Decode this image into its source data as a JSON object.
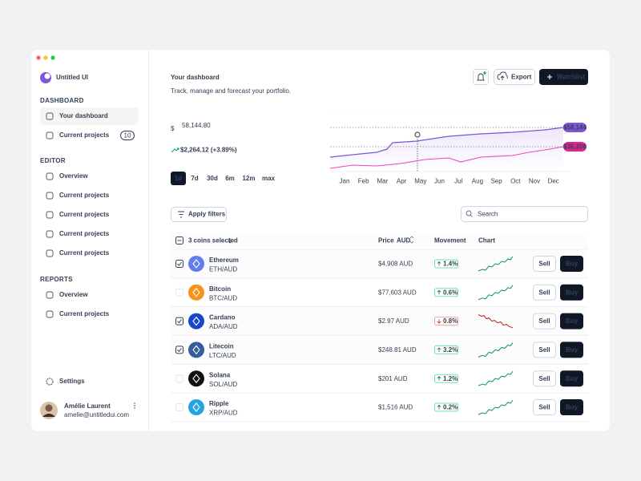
{
  "brand": "Untitled UI",
  "nav": [
    {
      "heading": "DASHBOARD",
      "items": [
        {
          "label": "Your dashboard",
          "active": true
        },
        {
          "label": "Current projects",
          "badge": "10"
        }
      ]
    },
    {
      "heading": "EDITOR",
      "items": [
        {
          "label": "Overview"
        },
        {
          "label": "Current projects"
        },
        {
          "label": "Current projects"
        },
        {
          "label": "Current projects"
        },
        {
          "label": "Current projects"
        }
      ]
    },
    {
      "heading": "REPORTS",
      "items": [
        {
          "label": "Overview"
        },
        {
          "label": "Current projects"
        }
      ]
    }
  ],
  "settings": "Settings",
  "user": {
    "name": "Amélie Laurent",
    "email": "amelie@untitledui.com"
  },
  "header": {
    "title": "Your dashboard",
    "subtitle": "Track, manage and forecast your portfolio.",
    "export": "Export",
    "watchlist": "Watchlist"
  },
  "balance": {
    "currency": "$",
    "amount": "58,144.80",
    "change": "$2,264.12 (+3.89%)"
  },
  "ranges": {
    "options": [
      "1d",
      "7d",
      "30d",
      "6m",
      "12m",
      "max"
    ],
    "selected": 0
  },
  "chart": {
    "months": [
      "Jan",
      "Feb",
      "Mar",
      "Apr",
      "May",
      "Jun",
      "Jul",
      "Aug",
      "Sep",
      "Oct",
      "Nov",
      "Dec"
    ],
    "labels": [
      "$58,144",
      "$36,206"
    ]
  },
  "filters": "Apply filters",
  "search": "Search",
  "table": {
    "selection": "3 coins selected",
    "columns": {
      "price": "Price",
      "currency": "AUD",
      "movement": "Movement",
      "chart": "Chart"
    },
    "sell": "Sell",
    "buy": "Buy",
    "rows": [
      {
        "name": "Ethereum",
        "pair": "ETH/AUD",
        "price": "$4,908 AUD",
        "movement": "1.4%",
        "trend": "up",
        "selected": true,
        "icon_color": "#627eea"
      },
      {
        "name": "Bitcoin",
        "pair": "BTC/AUD",
        "price": "$77,603 AUD",
        "movement": "0.6%",
        "trend": "up",
        "selected": false,
        "icon_color": "#f7931a"
      },
      {
        "name": "Cardano",
        "pair": "ADA/AUD",
        "price": "$2.97 AUD",
        "movement": "0.8%",
        "trend": "down",
        "selected": true,
        "icon_color": "#1747c9"
      },
      {
        "name": "Litecoin",
        "pair": "LTC/AUD",
        "price": "$248.81 AUD",
        "movement": "3.2%",
        "trend": "up",
        "selected": true,
        "icon_color": "#345d9d"
      },
      {
        "name": "Solana",
        "pair": "SOL/AUD",
        "price": "$201 AUD",
        "movement": "1.2%",
        "trend": "up",
        "selected": false,
        "icon_color": "#111111"
      },
      {
        "name": "Ripple",
        "pair": "XRP/AUD",
        "price": "$1,516 AUD",
        "movement": "0.2%",
        "trend": "up",
        "selected": false,
        "icon_color": "#23a6e0"
      }
    ]
  }
}
